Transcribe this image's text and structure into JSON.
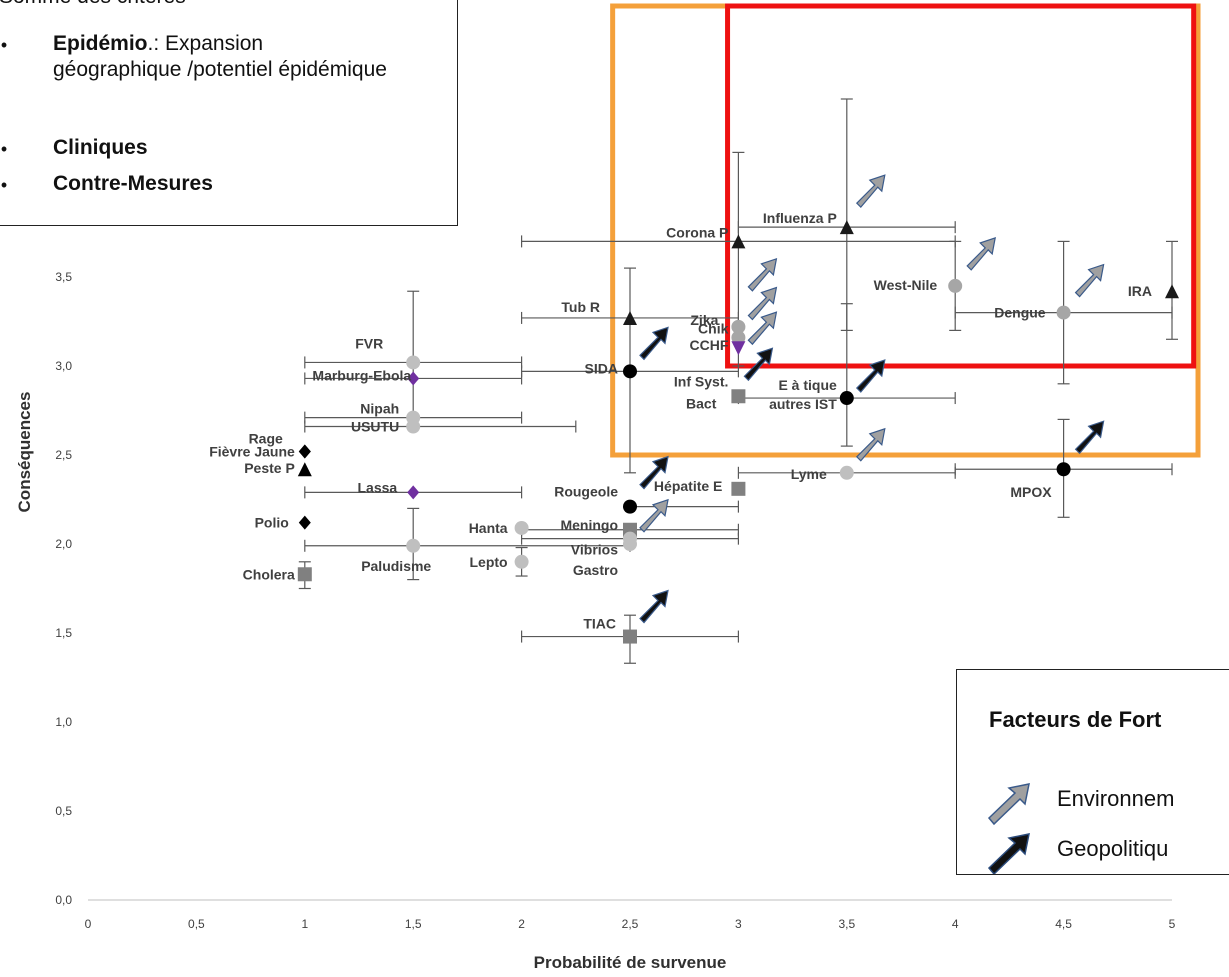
{
  "chart_data": {
    "type": "scatter",
    "xlabel": "Probabilité de survenue",
    "ylabel": "Conséquences",
    "xlim": [
      0,
      5
    ],
    "ylim": [
      0,
      5
    ],
    "x_ticks": [
      "0",
      "0,5",
      "1",
      "1,5",
      "2",
      "2,5",
      "3",
      "3,5",
      "4",
      "4,5",
      "5"
    ],
    "y_ticks": [
      "0,0",
      "0,5",
      "1,0",
      "1,5",
      "2,0",
      "2,5",
      "3,0",
      "3,5",
      "4,0",
      "4,5",
      "5,0"
    ],
    "points": [
      {
        "label": "Corona P",
        "x": 3.0,
        "y": 3.7,
        "marker": "triangle",
        "color": "#1a1a1a",
        "xerr": [
          2.0,
          4.0
        ],
        "yerr": [
          3.0,
          4.2
        ],
        "trend": null
      },
      {
        "label": "Influenza P",
        "x": 3.5,
        "y": 3.78,
        "marker": "triangle",
        "color": "#1a1a1a",
        "xerr": [
          3.0,
          4.0
        ],
        "yerr": [
          3.2,
          4.5
        ],
        "trend": "environnement"
      },
      {
        "label": "West-Nile",
        "x": 4.0,
        "y": 3.45,
        "marker": "circle",
        "color": "#a6a6a6",
        "xerr": null,
        "yerr": [
          3.2,
          3.7
        ],
        "trend": "environnement"
      },
      {
        "label": "Dengue",
        "x": 4.5,
        "y": 3.3,
        "marker": "circle",
        "color": "#a6a6a6",
        "xerr": [
          4.0,
          5.0
        ],
        "yerr": [
          2.9,
          3.7
        ],
        "trend": "environnement"
      },
      {
        "label": "IRA",
        "x": 5.0,
        "y": 3.42,
        "marker": "triangle",
        "color": "#1a1a1a",
        "xerr": null,
        "yerr": [
          3.15,
          3.7
        ],
        "trend": null
      },
      {
        "label": "Tub R",
        "x": 2.5,
        "y": 3.27,
        "marker": "triangle",
        "color": "#1a1a1a",
        "xerr": [
          2.0,
          3.0
        ],
        "yerr": null,
        "trend": null
      },
      {
        "label": "Zika",
        "x": 3.0,
        "y": 3.22,
        "marker": "circle",
        "color": "#a6a6a6",
        "xerr": null,
        "yerr": null,
        "trend": "environnement"
      },
      {
        "label": "Chik",
        "x": 3.0,
        "y": 3.16,
        "marker": "circle",
        "color": "#a6a6a6",
        "xerr": null,
        "yerr": null,
        "trend": "environnement"
      },
      {
        "label": "CCHF",
        "x": 3.0,
        "y": 3.1,
        "marker": "triangle-down",
        "color": "#7030a0",
        "xerr": null,
        "yerr": null,
        "trend": "environnement"
      },
      {
        "label": "SIDA",
        "x": 2.5,
        "y": 2.97,
        "marker": "circle",
        "color": "#000000",
        "xerr": [
          2.0,
          3.0
        ],
        "yerr": [
          2.4,
          3.55
        ],
        "trend": "geopolitique"
      },
      {
        "label": "Inf Syst. Bact",
        "x": 3.0,
        "y": 2.83,
        "marker": "square",
        "color": "#808080",
        "xerr": null,
        "yerr": null,
        "trend": "geopolitique"
      },
      {
        "label": "E à tique autres IST",
        "x": 3.5,
        "y": 2.82,
        "marker": "circle",
        "color": "#000000",
        "xerr": [
          3.0,
          4.0
        ],
        "yerr": [
          2.55,
          3.35
        ],
        "trend": "geopolitique"
      },
      {
        "label": "FVR",
        "x": 1.5,
        "y": 3.02,
        "marker": "circle",
        "color": "#bfbfbf",
        "xerr": [
          1.0,
          2.0
        ],
        "yerr": [
          2.65,
          3.42
        ],
        "trend": null
      },
      {
        "label": "Marburg-Ebola",
        "x": 1.5,
        "y": 2.93,
        "marker": "diamond",
        "color": "#7030a0",
        "xerr": [
          1.0,
          2.0
        ],
        "yerr": null,
        "trend": null
      },
      {
        "label": "Nipah",
        "x": 1.5,
        "y": 2.71,
        "marker": "circle",
        "color": "#bfbfbf",
        "xerr": [
          1.0,
          2.0
        ],
        "yerr": null,
        "trend": null
      },
      {
        "label": "USUTU",
        "x": 1.5,
        "y": 2.66,
        "marker": "circle",
        "color": "#bfbfbf",
        "xerr": [
          1.0,
          2.25
        ],
        "yerr": null,
        "trend": null
      },
      {
        "label": "Rage",
        "x": 1.0,
        "y": 2.52,
        "marker": "diamond",
        "color": "#000000",
        "xerr": null,
        "yerr": null,
        "trend": null
      },
      {
        "label": "Fièvre Jaune",
        "x": 1.0,
        "y": 2.52,
        "marker": "diamond",
        "color": "#000000",
        "xerr": null,
        "yerr": null,
        "trend": null
      },
      {
        "label": "Peste P",
        "x": 1.0,
        "y": 2.42,
        "marker": "triangle",
        "color": "#000000",
        "xerr": null,
        "yerr": null,
        "trend": null
      },
      {
        "label": "Lassa",
        "x": 1.5,
        "y": 2.29,
        "marker": "diamond",
        "color": "#7030a0",
        "xerr": [
          1.0,
          2.0
        ],
        "yerr": null,
        "trend": null
      },
      {
        "label": "Polio",
        "x": 1.0,
        "y": 2.12,
        "marker": "diamond",
        "color": "#000000",
        "xerr": null,
        "yerr": null,
        "trend": null
      },
      {
        "label": "Paludisme",
        "x": 1.5,
        "y": 1.99,
        "marker": "circle",
        "color": "#bfbfbf",
        "xerr": [
          1.0,
          2.5
        ],
        "yerr": [
          1.8,
          2.2
        ],
        "trend": null
      },
      {
        "label": "Cholera",
        "x": 1.0,
        "y": 1.83,
        "marker": "square",
        "color": "#808080",
        "xerr": null,
        "yerr": [
          1.75,
          1.9
        ],
        "trend": null
      },
      {
        "label": "Hanta",
        "x": 2.0,
        "y": 2.09,
        "marker": "circle",
        "color": "#bfbfbf",
        "xerr": null,
        "yerr": null,
        "trend": null
      },
      {
        "label": "Lepto",
        "x": 2.0,
        "y": 1.9,
        "marker": "circle",
        "color": "#bfbfbf",
        "xerr": null,
        "yerr": [
          1.82,
          1.98
        ],
        "trend": null
      },
      {
        "label": "Rougeole",
        "x": 2.5,
        "y": 2.21,
        "marker": "circle",
        "color": "#000000",
        "xerr": [
          2.5,
          3.0
        ],
        "yerr": null,
        "trend": "geopolitique"
      },
      {
        "label": "Meningo",
        "x": 2.5,
        "y": 2.08,
        "marker": "square",
        "color": "#808080",
        "xerr": [
          2.0,
          3.0
        ],
        "yerr": null,
        "trend": "environnement"
      },
      {
        "label": "Vibrios",
        "x": 2.5,
        "y": 2.03,
        "marker": "circle",
        "color": "#bfbfbf",
        "xerr": [
          2.0,
          3.0
        ],
        "yerr": null,
        "trend": null
      },
      {
        "label": "Gastro",
        "x": 2.5,
        "y": 2.0,
        "marker": "circle",
        "color": "#bfbfbf",
        "xerr": null,
        "yerr": null,
        "trend": null
      },
      {
        "label": "Hépatite E",
        "x": 3.0,
        "y": 2.31,
        "marker": "square",
        "color": "#808080",
        "xerr": null,
        "yerr": null,
        "trend": null
      },
      {
        "label": "Lyme",
        "x": 3.5,
        "y": 2.4,
        "marker": "circle",
        "color": "#bfbfbf",
        "xerr": [
          3.0,
          4.0
        ],
        "yerr": null,
        "trend": "environnement"
      },
      {
        "label": "MPOX",
        "x": 4.5,
        "y": 2.42,
        "marker": "circle",
        "color": "#000000",
        "xerr": [
          4.0,
          5.0
        ],
        "yerr": [
          2.15,
          2.7
        ],
        "trend": "geopolitique"
      },
      {
        "label": "TIAC",
        "x": 2.5,
        "y": 1.48,
        "marker": "square",
        "color": "#808080",
        "xerr": [
          2.0,
          3.0
        ],
        "yerr": [
          1.33,
          1.6
        ],
        "trend": "geopolitique"
      }
    ],
    "regions": [
      {
        "name": "orange-zone",
        "x": [
          2.42,
          5.12
        ],
        "y": [
          2.5,
          5.0
        ],
        "color": "#f4a03a"
      },
      {
        "name": "red-zone",
        "x": [
          2.95,
          5.1
        ],
        "y": [
          3.0,
          5.0
        ],
        "color": "#ee1111"
      }
    ]
  },
  "criteria_box": {
    "title": "Somme des critères",
    "items": [
      {
        "bold": "Epidémio",
        "text": ".: Expansion géographique /potentiel épidémique"
      },
      {
        "bold": "Cliniques",
        "text": ""
      },
      {
        "bold": "Contre-Mesures",
        "text": ""
      }
    ]
  },
  "trend_legend": {
    "title": "Facteurs de Fort",
    "items": [
      {
        "label": "Environnem",
        "color": "#a0a0a0"
      },
      {
        "label": "Geopolitiqu",
        "color": "#111111"
      }
    ]
  }
}
